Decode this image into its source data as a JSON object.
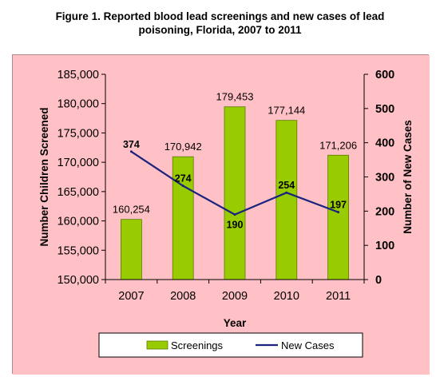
{
  "figure": {
    "title_line1": "Figure 1.  Reported blood lead screenings and new cases of lead",
    "title_line2": "poisoning, Florida, 2007 to 2011"
  },
  "colors": {
    "page_background": "#ffffff",
    "chart_background": "#ffc0c6",
    "bar_fill": "#99cc00",
    "bar_border": "#5a7a00",
    "line": "#1a237e"
  },
  "chart_data": {
    "type": "bar",
    "categories": [
      "2007",
      "2008",
      "2009",
      "2010",
      "2011"
    ],
    "xlabel": "Year",
    "series": [
      {
        "name": "Screenings",
        "type": "bar",
        "axis": "left",
        "values": [
          160254,
          170942,
          179453,
          177144,
          171206
        ],
        "labels": [
          "160,254",
          "170,942",
          "179,453",
          "177,144",
          "171,206"
        ]
      },
      {
        "name": "New Cases",
        "type": "line",
        "axis": "right",
        "values": [
          374,
          274,
          190,
          254,
          197
        ],
        "labels": [
          "374",
          "274",
          "190",
          "254",
          "197"
        ]
      }
    ],
    "y_left": {
      "label": "Number Children Screened",
      "lim": [
        150000,
        185000
      ],
      "ticks": [
        150000,
        155000,
        160000,
        165000,
        170000,
        175000,
        180000,
        185000
      ],
      "tick_labels": [
        "150,000",
        "155,000",
        "160,000",
        "165,000",
        "170,000",
        "175,000",
        "180,000",
        "185,000"
      ]
    },
    "y_right": {
      "label": "Number of New Cases",
      "lim": [
        0,
        600
      ],
      "ticks": [
        0,
        100,
        200,
        300,
        400,
        500,
        600
      ],
      "tick_labels": [
        "0",
        "100",
        "200",
        "300",
        "400",
        "500",
        "600"
      ]
    },
    "grid": false,
    "legend": {
      "position": "bottom"
    }
  }
}
